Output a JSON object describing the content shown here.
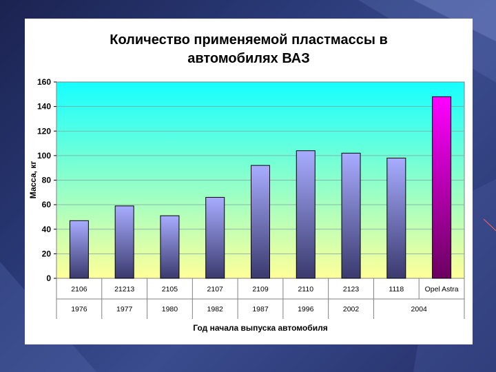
{
  "chart_data": {
    "type": "bar",
    "title_line1": "Количество применяемой пластмассы в",
    "title_line2": "автомобилях ВАЗ",
    "ylabel": "Масса, кг",
    "xlabel": "Год начала выпуска автомобиля",
    "ylim": [
      0,
      160
    ],
    "yticks": [
      0,
      20,
      40,
      60,
      80,
      100,
      120,
      140,
      160
    ],
    "grid": true,
    "categories": [
      "2106",
      "21213",
      "2105",
      "2107",
      "2109",
      "2110",
      "2123",
      "1118",
      "Opel Astra"
    ],
    "values": [
      47,
      59,
      51,
      66,
      92,
      104,
      102,
      98,
      148
    ],
    "year_groups": [
      {
        "label": "1976",
        "span": 1
      },
      {
        "label": "1977",
        "span": 1
      },
      {
        "label": "1980",
        "span": 1
      },
      {
        "label": "1982",
        "span": 1
      },
      {
        "label": "1987",
        "span": 1
      },
      {
        "label": "1996",
        "span": 1
      },
      {
        "label": "2002",
        "span": 1
      },
      {
        "label": "2004",
        "span": 2
      }
    ],
    "colors": {
      "bar_top": "#a8acff",
      "bar_bottom": "#3a3a6e",
      "highlight_top": "#ff00ff",
      "highlight_bottom": "#6a0060",
      "plot_top": "#16ffff",
      "plot_bottom": "#ffff99"
    },
    "highlight_index": 8
  }
}
